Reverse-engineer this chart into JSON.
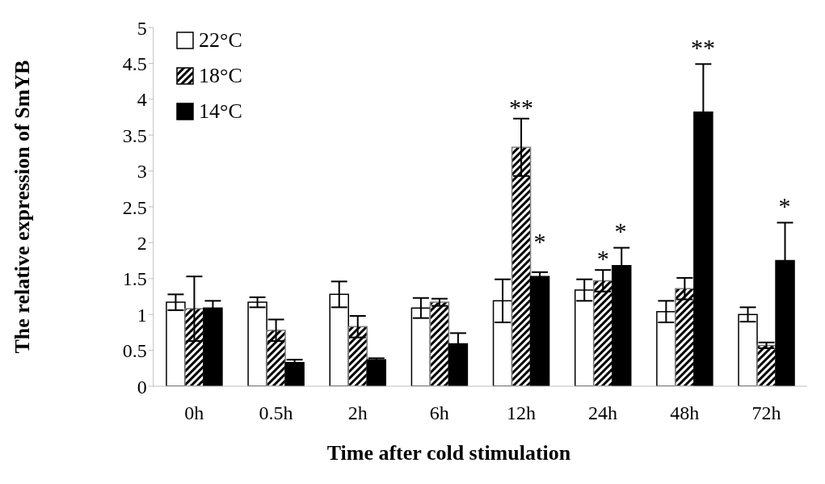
{
  "chart_data": {
    "type": "bar",
    "xlabel": "Time after cold stimulation",
    "ylabel": "The relative expression of SmYB",
    "categories": [
      "0h",
      "0.5h",
      "2h",
      "6h",
      "12h",
      "24h",
      "48h",
      "72h"
    ],
    "series": [
      {
        "name": "22°C",
        "color": "#ffffff",
        "values": [
          1.17,
          1.17,
          1.28,
          1.09,
          1.19,
          1.34,
          1.04,
          1.0
        ],
        "errors": [
          0.11,
          0.07,
          0.18,
          0.14,
          0.3,
          0.15,
          0.15,
          0.1
        ]
      },
      {
        "name": "18°C",
        "color": "#7f7f7f",
        "values": [
          1.08,
          0.78,
          0.83,
          1.17,
          3.33,
          1.47,
          1.36,
          0.57
        ],
        "errors": [
          0.45,
          0.15,
          0.15,
          0.05,
          0.4,
          0.15,
          0.15,
          0.04
        ]
      },
      {
        "name": "14°C",
        "color": "#000000",
        "values": [
          1.09,
          0.33,
          0.37,
          0.59,
          1.53,
          1.68,
          3.82,
          1.75
        ],
        "errors": [
          0.1,
          0.04,
          0.02,
          0.15,
          0.06,
          0.25,
          0.67,
          0.53
        ]
      }
    ],
    "ylim": [
      0,
      5
    ],
    "yticks": [
      0,
      0.5,
      1,
      1.5,
      2,
      2.5,
      3,
      3.5,
      4,
      4.5,
      5
    ],
    "legend": "top left",
    "annotations": [
      {
        "text": "**",
        "x": "12h",
        "y": 3.73
      },
      "*",
      {
        "text": "*",
        "x": "24h",
        "y": 1.62
      },
      "*",
      "**",
      "*"
    ]
  }
}
